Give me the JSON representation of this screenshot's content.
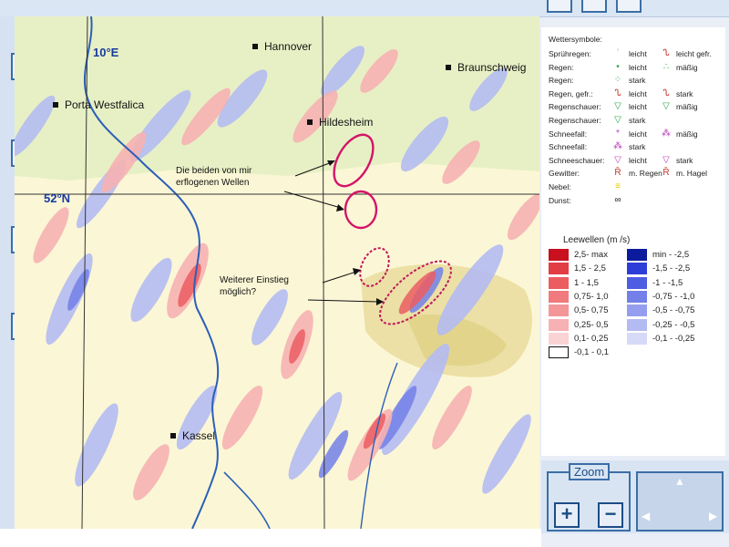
{
  "map": {
    "cities": {
      "hannover": "Hannover",
      "braunschweig": "Braunschweig",
      "porta": "Porta Westfalica",
      "hildesheim": "Hildesheim",
      "kassel": "Kassel"
    },
    "grid": {
      "lat_label": "52°N",
      "lon_label": "10°E"
    },
    "annotations": {
      "flown_line1": "Die beiden von mir",
      "flown_line2": "erflogenen Wellen",
      "further_line1": "Weiterer Einstieg",
      "further_line2": "möglich?"
    }
  },
  "legend": {
    "title": "Wettersymbole:",
    "rows": [
      {
        "label": "Sprühregen:",
        "s1": "ʾ",
        "t1": "leicht",
        "s2": "ᔐ",
        "t2": "leicht gefr."
      },
      {
        "label": "Regen:",
        "s1": "•",
        "t1": "leicht",
        "s2": "∴",
        "t2": "mäßig"
      },
      {
        "label": "Regen:",
        "s1": "⁘",
        "t1": "stark",
        "s2": "",
        "t2": ""
      },
      {
        "label": "Regen, gefr.:",
        "s1": "ᔐ",
        "t1": "leicht",
        "s2": "ᔐ",
        "t2": "stark"
      },
      {
        "label": "Regenschauer:",
        "s1": "▽",
        "t1": "leicht",
        "s2": "▽",
        "t2": "mäßig"
      },
      {
        "label": "Regenschauer:",
        "s1": "▽",
        "t1": "stark",
        "s2": "",
        "t2": ""
      },
      {
        "label": "Schneefall:",
        "s1": "*",
        "t1": "leicht",
        "s2": "⁂",
        "t2": "mäßig"
      },
      {
        "label": "Schneefall:",
        "s1": "⁂",
        "t1": "stark",
        "s2": "",
        "t2": ""
      },
      {
        "label": "Schneeschauer:",
        "s1": "▽",
        "t1": "leicht",
        "s2": "▽",
        "t2": "stark"
      },
      {
        "label": "Gewitter:",
        "s1": "Ř",
        "t1": "m. Regen",
        "s2": "Ř",
        "t2": "m. Hagel"
      },
      {
        "label": "Nebel:",
        "s1": "≡",
        "t1": "",
        "s2": "",
        "t2": ""
      },
      {
        "label": "Dunst:",
        "s1": "∞",
        "t1": "",
        "s2": "",
        "t2": ""
      }
    ],
    "lee_title": "Leewellen (m /s)",
    "positive": [
      {
        "label": "2,5- max",
        "color": "#c8101e"
      },
      {
        "label": "1,5 - 2,5",
        "color": "#e23c45"
      },
      {
        "label": "1 - 1,5",
        "color": "#ec5d62"
      },
      {
        "label": "0,75- 1,0",
        "color": "#f07a7d"
      },
      {
        "label": "0,5- 0,75",
        "color": "#f49598"
      },
      {
        "label": "0,25- 0,5",
        "color": "#f7b1b3"
      },
      {
        "label": "0,1- 0,25",
        "color": "#fad3d4"
      },
      {
        "label": "-0,1 - 0,1",
        "color": "#ffffff"
      }
    ],
    "negative": [
      {
        "label": "min - -2,5",
        "color": "#0c1a9c"
      },
      {
        "label": "-1,5 - -2,5",
        "color": "#2d3ed8"
      },
      {
        "label": "-1 - -1,5",
        "color": "#4e5ee2"
      },
      {
        "label": "-0,75 - -1,0",
        "color": "#7380e8"
      },
      {
        "label": "-0,5 - -0,75",
        "color": "#959eee"
      },
      {
        "label": "-0,25 - -0,5",
        "color": "#b4bbf2"
      },
      {
        "label": "-0,1 - -0,25",
        "color": "#d6daf7"
      }
    ]
  },
  "zoom": {
    "label": "Zoom",
    "plus": "+",
    "minus": "−"
  }
}
